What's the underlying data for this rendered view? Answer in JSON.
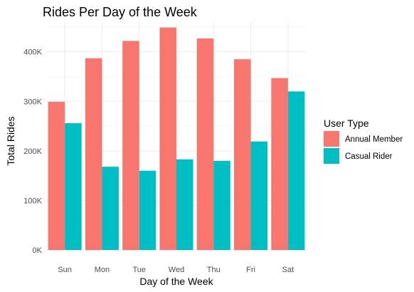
{
  "chart_data": {
    "type": "bar",
    "title": "Rides Per Day of the Week",
    "xlabel": "Day of the Week",
    "ylabel": "Total Rides",
    "categories": [
      "Sun",
      "Mon",
      "Tue",
      "Wed",
      "Thu",
      "Fri",
      "Sat"
    ],
    "series": [
      {
        "name": "Annual Member",
        "color": "#F8766D",
        "values": [
          299000,
          387000,
          422000,
          449000,
          427000,
          385000,
          347000
        ]
      },
      {
        "name": "Casual Rider",
        "color": "#00BFC4",
        "values": [
          256000,
          168000,
          160000,
          183000,
          180000,
          219000,
          320000
        ]
      }
    ],
    "ylim": [
      0,
      460000
    ],
    "yticks": [
      0,
      100000,
      200000,
      300000,
      400000
    ],
    "ytick_labels": [
      "0K",
      "100K",
      "200K",
      "300K",
      "400K"
    ],
    "grid": true,
    "legend": {
      "title": "User Type",
      "position": "right"
    }
  }
}
